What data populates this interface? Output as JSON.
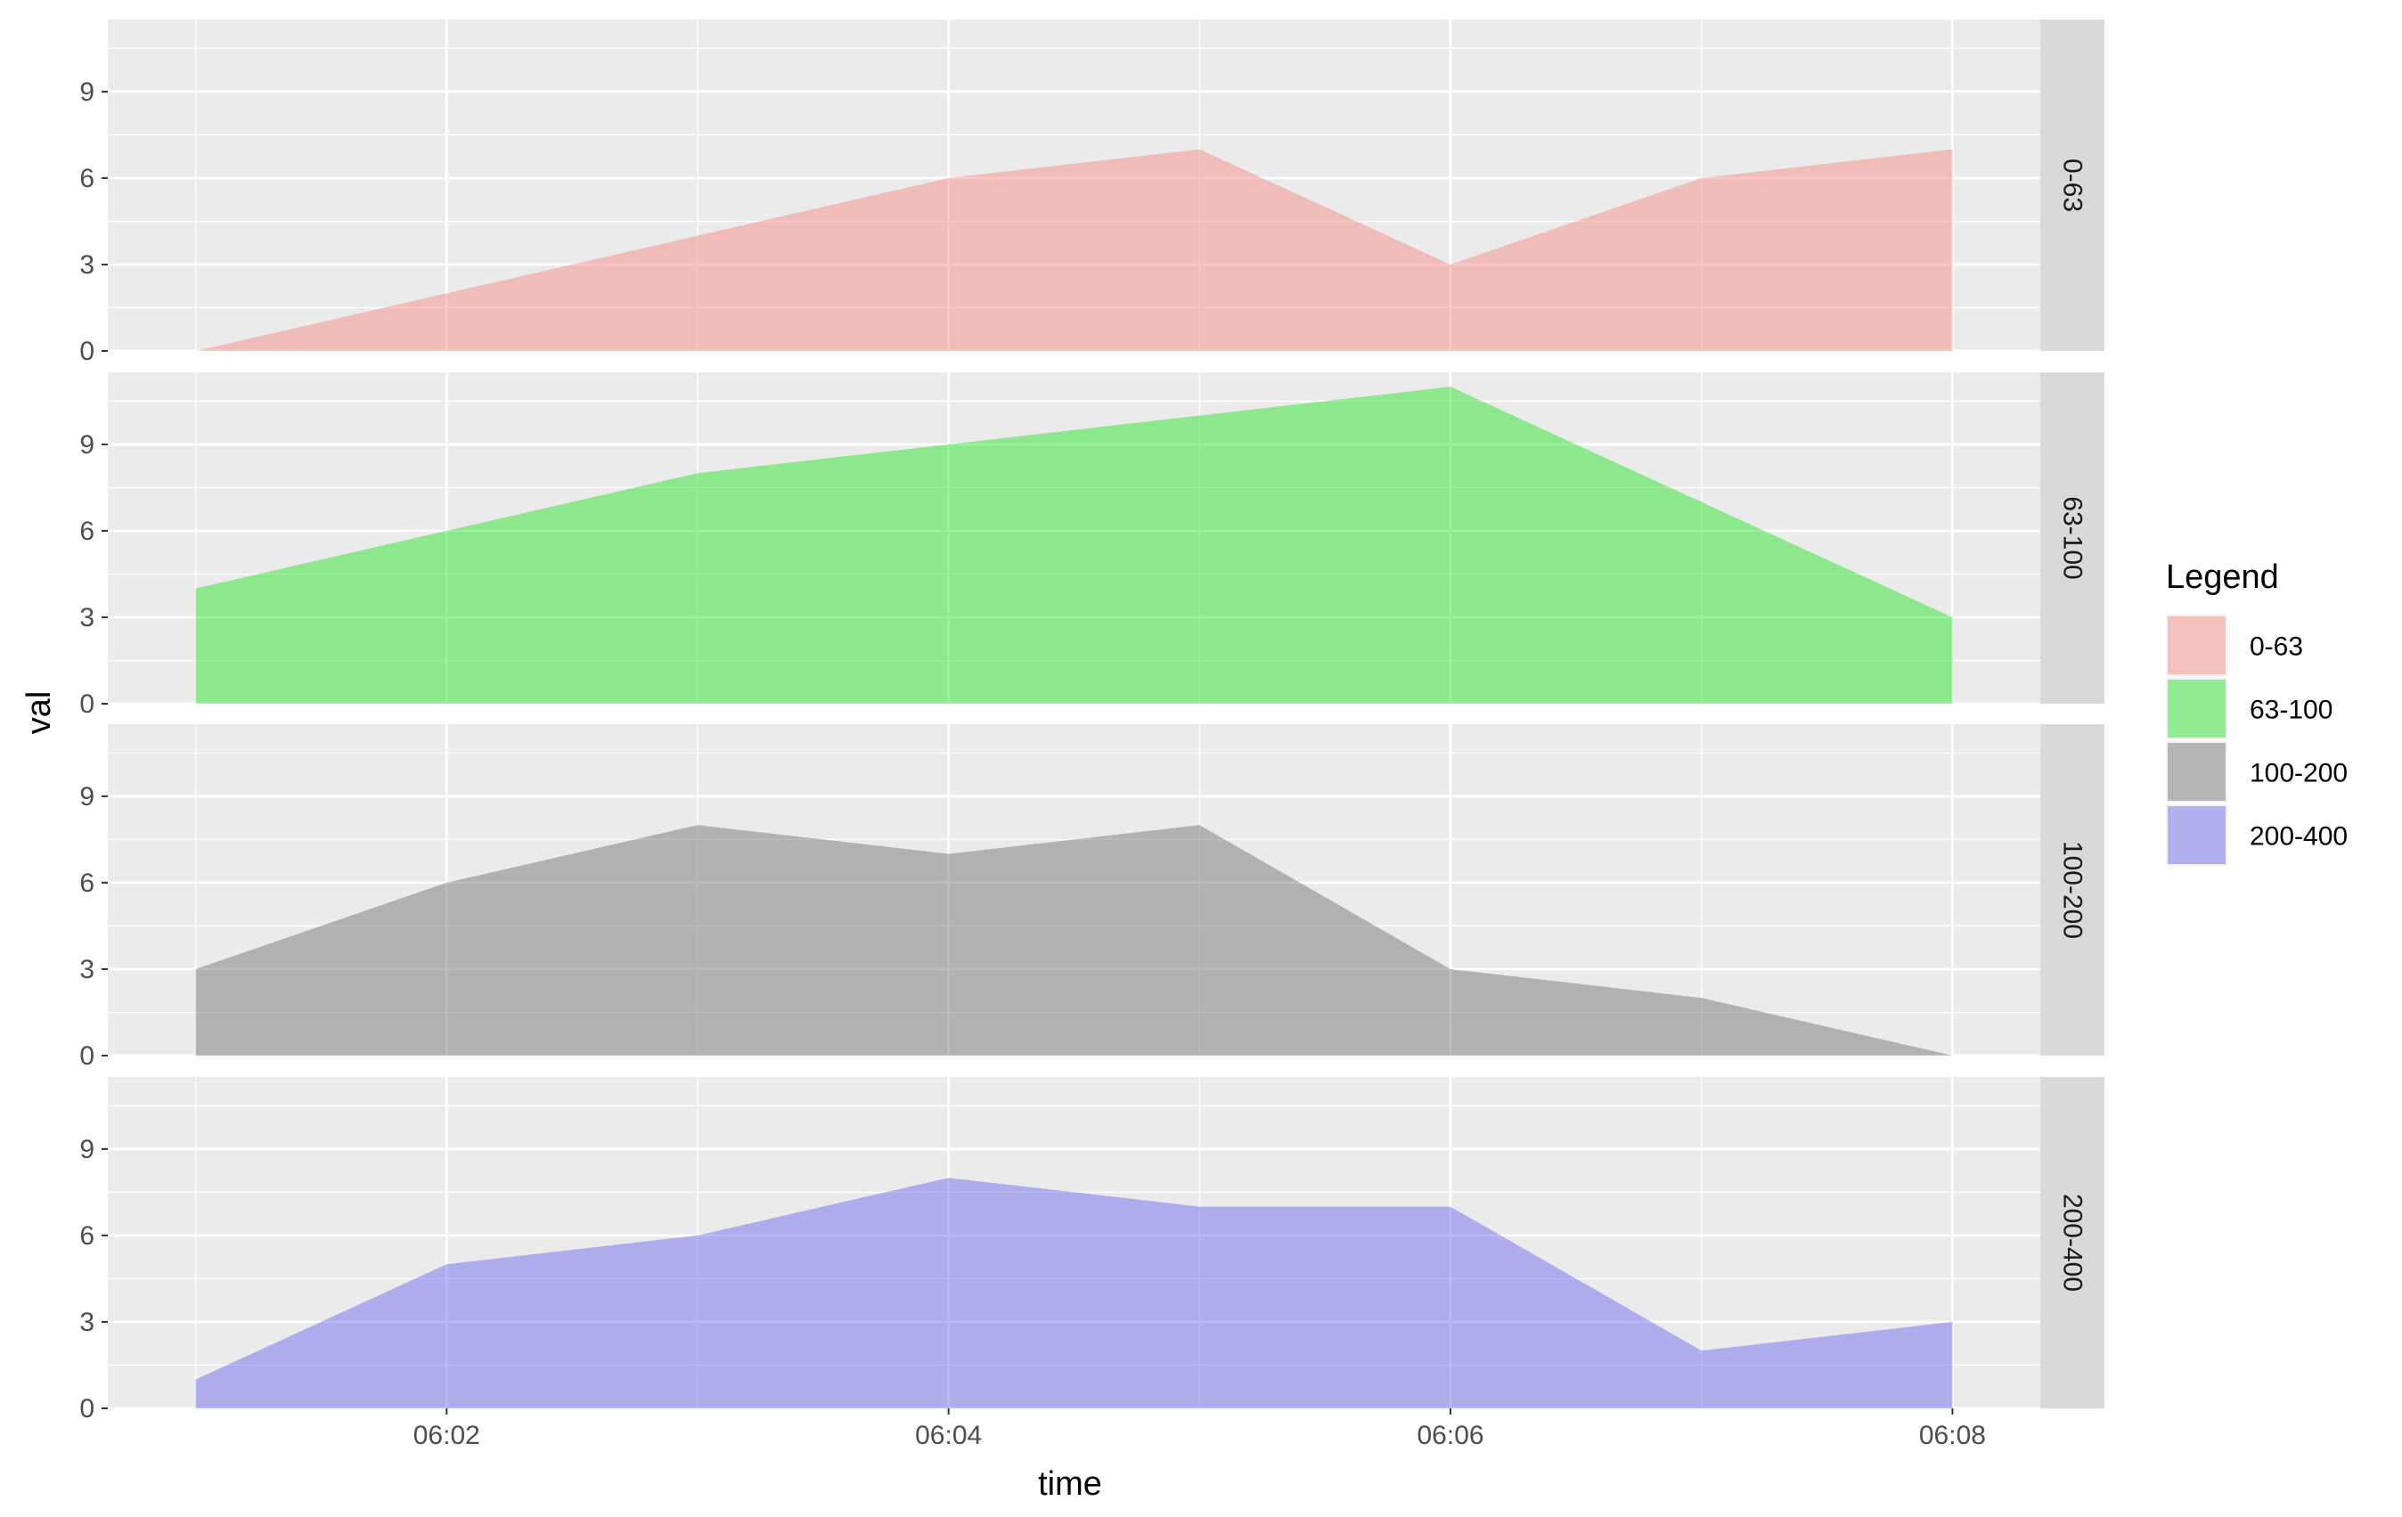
{
  "chart_data": {
    "type": "area",
    "facet_by": "Legend",
    "xlabel": "time",
    "ylabel": "val",
    "x": [
      "06:01",
      "06:02",
      "06:03",
      "06:04",
      "06:05",
      "06:06",
      "06:07",
      "06:08"
    ],
    "x_ticks": [
      "06:02",
      "06:04",
      "06:06",
      "06:08"
    ],
    "xlim": [
      "06:00.65",
      "06:08.35"
    ],
    "ylim": [
      0,
      11.5
    ],
    "y_ticks": [
      0,
      3,
      6,
      9
    ],
    "grid": true,
    "legend_title": "Legend",
    "legend_position": "right",
    "series": [
      {
        "name": "0-63",
        "color": "#F8766D",
        "values": [
          0,
          2,
          4,
          6,
          7,
          3,
          6,
          7
        ]
      },
      {
        "name": "63-100",
        "color": "#00E000",
        "values": [
          4,
          6,
          8,
          9,
          10,
          11,
          7,
          3
        ]
      },
      {
        "name": "100-200",
        "color": "#595959",
        "values": [
          3,
          6,
          8,
          7,
          8,
          3,
          2,
          0
        ]
      },
      {
        "name": "200-400",
        "color": "#5050F0",
        "values": [
          1,
          5,
          6,
          8,
          7,
          7,
          2,
          3
        ]
      }
    ]
  }
}
